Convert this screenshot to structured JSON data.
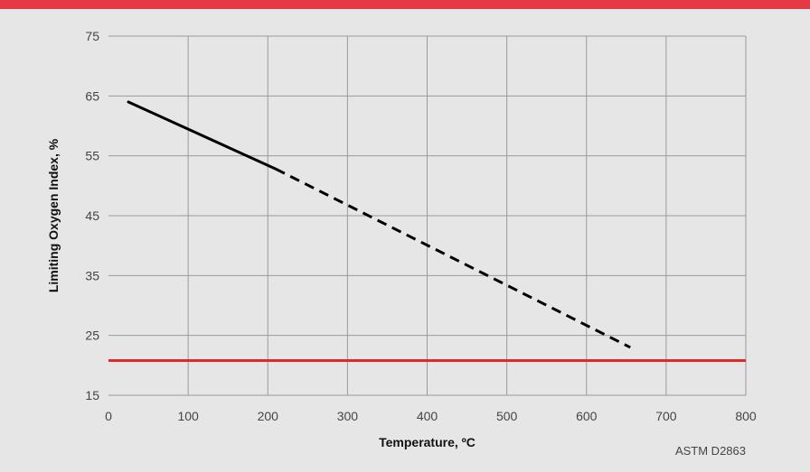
{
  "colors": {
    "header_bar": "#e63946",
    "background": "#e6e6e6",
    "grid": "#9a9a9a",
    "reference_line": "#e02828",
    "series": "#000000"
  },
  "chart_data": {
    "type": "line",
    "title": "",
    "xlabel": "Temperature, ºC",
    "ylabel": "Limiting Oxygen Index, %",
    "xlim": [
      0,
      800
    ],
    "ylim": [
      15,
      75
    ],
    "x_ticks": [
      0,
      100,
      200,
      300,
      400,
      500,
      600,
      700,
      800
    ],
    "y_ticks": [
      15,
      25,
      35,
      45,
      55,
      65,
      75
    ],
    "grid": true,
    "series": [
      {
        "style": "solid",
        "x": [
          25,
          210
        ],
        "y": [
          64,
          52.8
        ]
      },
      {
        "style": "dashed",
        "x": [
          210,
          655
        ],
        "y": [
          52.8,
          23
        ]
      }
    ],
    "reference_lines": [
      {
        "axis": "y",
        "value": 20.8
      }
    ],
    "source_note": "ASTM D2863"
  }
}
